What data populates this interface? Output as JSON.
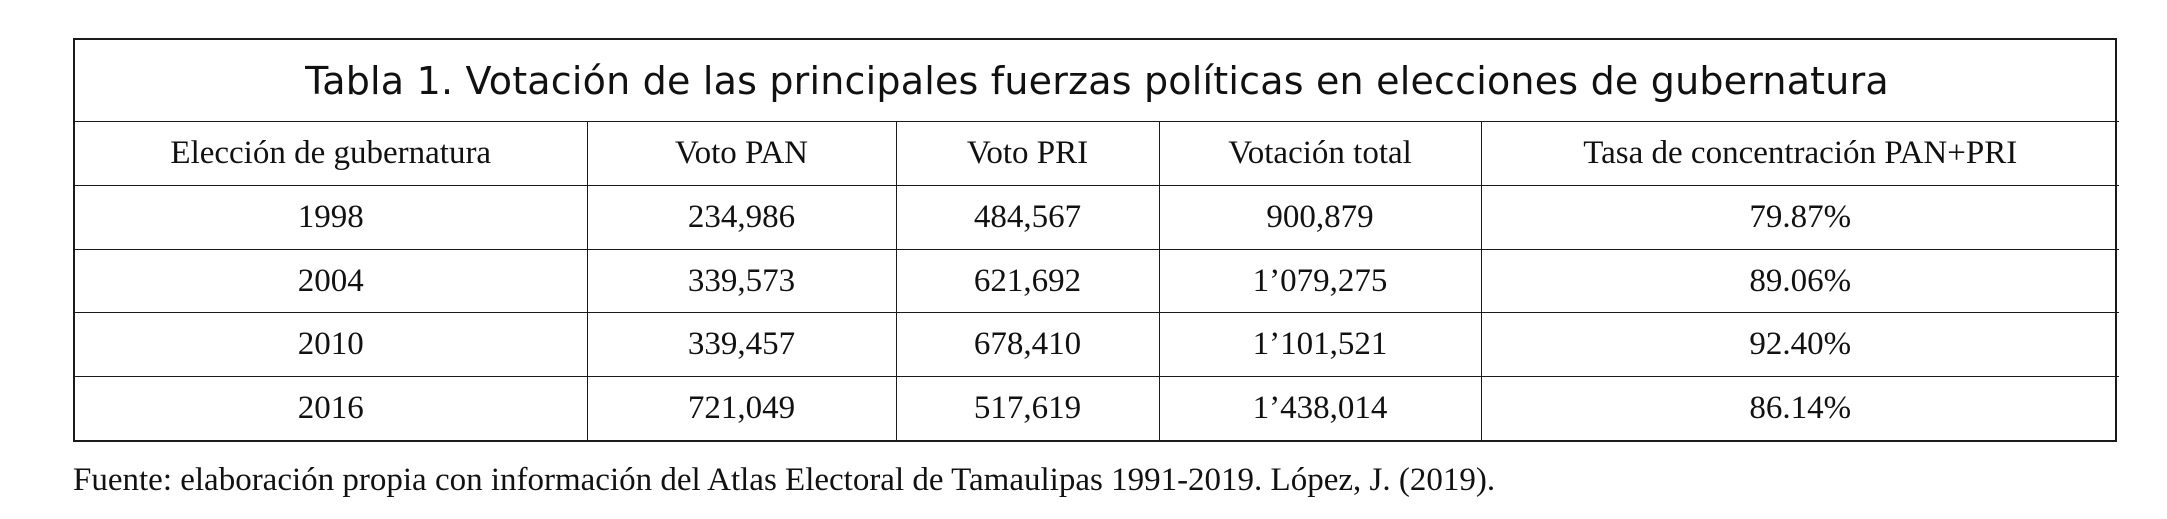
{
  "table": {
    "title": "Tabla 1. Votación de las principales fuerzas políticas en elecciones de gubernatura",
    "headers": [
      "Elección de gubernatura",
      "Voto PAN",
      "Voto PRI",
      "Votación total",
      "Tasa de concentración PAN+PRI"
    ],
    "rows": [
      [
        "1998",
        "234,986",
        "484,567",
        "900,879",
        "79.87%"
      ],
      [
        "2004",
        "339,573",
        "621,692",
        "1’079,275",
        "89.06%"
      ],
      [
        "2010",
        "339,457",
        "678,410",
        "1’101,521",
        "92.40%"
      ],
      [
        "2016",
        "721,049",
        "517,619",
        "1’438,014",
        "86.14%"
      ]
    ]
  },
  "source": "Fuente: elaboración propia con información del Atlas Electoral de Tamaulipas 1991-2019. López, J. (2019)."
}
